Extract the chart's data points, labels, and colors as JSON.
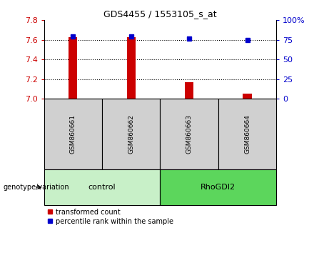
{
  "title": "GDS4455 / 1553105_s_at",
  "samples": [
    "GSM860661",
    "GSM860662",
    "GSM860663",
    "GSM860664"
  ],
  "groups": [
    "control",
    "control",
    "RhoGDI2",
    "RhoGDI2"
  ],
  "red_values": [
    7.63,
    7.63,
    7.17,
    7.05
  ],
  "blue_values": [
    79,
    79,
    77,
    75
  ],
  "ylim_left": [
    7.0,
    7.8
  ],
  "ylim_right": [
    0,
    100
  ],
  "yticks_left": [
    7.0,
    7.2,
    7.4,
    7.6,
    7.8
  ],
  "yticks_right": [
    0,
    25,
    50,
    75,
    100
  ],
  "ytick_labels_right": [
    "0",
    "25",
    "50",
    "75",
    "100%"
  ],
  "red_color": "#CC0000",
  "blue_color": "#0000CC",
  "bar_bottom": 7.0,
  "bg_color": "#ffffff",
  "label_red": "transformed count",
  "label_blue": "percentile rank within the sample",
  "genotype_label": "genotype/variation",
  "sample_box_color": "#d0d0d0",
  "group_bg_colors": {
    "control": "#c8f0c8",
    "RhoGDI2": "#5cd65c"
  },
  "bar_width": 0.15,
  "dotted_lines": [
    7.2,
    7.4,
    7.6
  ]
}
